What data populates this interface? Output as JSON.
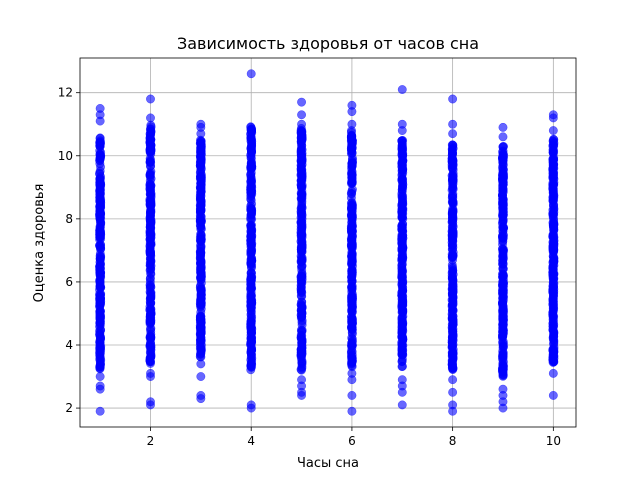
{
  "chart_data": {
    "type": "scatter",
    "title": "Зависимость здоровья от часов сна",
    "xlabel": "Часы сна",
    "ylabel": "Оценка здоровья",
    "xlim": [
      0.6,
      10.45
    ],
    "ylim": [
      1.4,
      13.1
    ],
    "xticks": [
      2,
      4,
      6,
      8,
      10
    ],
    "yticks": [
      2,
      4,
      6,
      8,
      10,
      12
    ],
    "grid": true,
    "marker_color": "#0000ff",
    "marker_alpha": 0.6,
    "series": [
      {
        "color": "#0000ff",
        "columns": [
          {
            "x": 1,
            "min": 3.2,
            "max": 10.6,
            "outliers": [
              1.9,
              2.6,
              2.7,
              3.0,
              11.1,
              11.3,
              11.5
            ]
          },
          {
            "x": 2,
            "min": 3.4,
            "max": 11.0,
            "outliers": [
              2.1,
              2.2,
              3.0,
              3.1,
              11.2,
              11.8
            ]
          },
          {
            "x": 3,
            "min": 3.6,
            "max": 10.5,
            "outliers": [
              2.3,
              2.4,
              3.0,
              3.4,
              10.7,
              10.9,
              11.0
            ]
          },
          {
            "x": 4,
            "min": 3.2,
            "max": 11.0,
            "outliers": [
              2.0,
              2.1,
              12.6
            ]
          },
          {
            "x": 5,
            "min": 3.2,
            "max": 10.9,
            "outliers": [
              2.4,
              2.5,
              2.7,
              2.9,
              11.0,
              11.3,
              11.7
            ]
          },
          {
            "x": 6,
            "min": 3.3,
            "max": 10.8,
            "outliers": [
              1.9,
              2.4,
              2.9,
              3.1,
              11.0,
              11.4,
              11.6
            ]
          },
          {
            "x": 7,
            "min": 3.3,
            "max": 10.5,
            "outliers": [
              2.1,
              2.5,
              2.7,
              2.9,
              10.8,
              11.0,
              12.1
            ]
          },
          {
            "x": 8,
            "min": 3.2,
            "max": 10.4,
            "outliers": [
              1.9,
              2.1,
              2.5,
              2.9,
              10.7,
              11.0,
              11.8
            ]
          },
          {
            "x": 9,
            "min": 3.0,
            "max": 10.3,
            "outliers": [
              2.0,
              2.2,
              2.4,
              2.6,
              10.6,
              10.9
            ]
          },
          {
            "x": 10,
            "min": 3.4,
            "max": 10.6,
            "outliers": [
              2.4,
              3.1,
              10.8,
              11.2,
              11.3
            ]
          }
        ]
      }
    ]
  }
}
